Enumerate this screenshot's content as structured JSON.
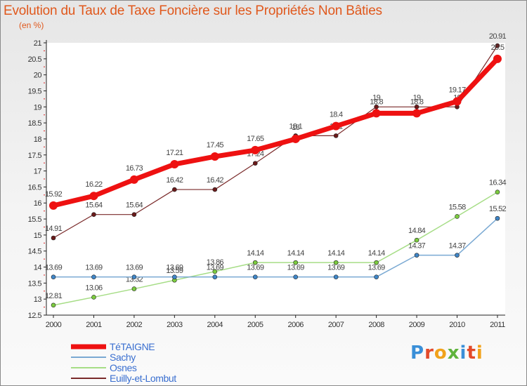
{
  "title": "Evolution du Taux de Taxe Foncière sur les Propriétés Non Bâties",
  "subtitle": "(en %)",
  "logo": {
    "text": "Proxiti",
    "colors": [
      "#3a8fd8",
      "#e34a2a",
      "#f1a21a",
      "#5fb33c",
      "#3a8fd8",
      "#e34a2a",
      "#f1a21a"
    ]
  },
  "chart_data": {
    "type": "line",
    "title": "Evolution du Taux de Taxe Foncière sur les Propriétés Non Bâties",
    "ylabel": "(en %)",
    "xlabel": "",
    "ylim": [
      12.5,
      21
    ],
    "yticks": [
      "12.5",
      "13",
      "13.5",
      "14",
      "14.5",
      "15",
      "15.5",
      "16",
      "16.5",
      "17",
      "17.5",
      "18",
      "18.5",
      "19",
      "19.5",
      "20",
      "20.5",
      "21"
    ],
    "x": [
      "2000",
      "2001",
      "2002",
      "2003",
      "2004",
      "2005",
      "2006",
      "2007",
      "2008",
      "2009",
      "2010",
      "2011"
    ],
    "grid": false,
    "legend_position": "bottom-left",
    "series": [
      {
        "name": "Euilly-et-Lombut",
        "color": "#7a2a2a",
        "marker": "#6b1a1a",
        "width": 1.2,
        "r": 3,
        "labelDy": -10,
        "values": [
          14.91,
          15.64,
          15.64,
          16.42,
          16.42,
          17.24,
          18.1,
          18.1,
          19,
          19,
          19,
          20.91
        ],
        "labels": [
          "14.91",
          "15.64",
          "15.64",
          "16.42",
          "16.42",
          "17.24",
          "18.1",
          "18.1",
          "19",
          "19",
          "19",
          "20.91"
        ]
      },
      {
        "name": "Osnes",
        "color": "#a6dd86",
        "marker": "#7ccc3f",
        "width": 1.5,
        "r": 3,
        "labelDy": -10,
        "values": [
          12.81,
          13.06,
          13.32,
          13.59,
          13.86,
          14.14,
          14.14,
          14.14,
          14.14,
          14.84,
          15.58,
          16.34
        ],
        "labels": [
          "12.81",
          "13.06",
          "13.32",
          "13.59",
          "13.86",
          "14.14",
          "14.14",
          "14.14",
          "14.14",
          "14.84",
          "15.58",
          "16.34"
        ]
      },
      {
        "name": "Sachy",
        "color": "#7aa9d3",
        "marker": "#3f86c8",
        "width": 1.5,
        "r": 3,
        "labelDy": -10,
        "values": [
          13.69,
          13.69,
          13.69,
          13.69,
          13.69,
          13.69,
          13.69,
          13.69,
          13.69,
          14.37,
          14.37,
          15.52
        ],
        "labels": [
          "13.69",
          "13.69",
          "13.69",
          "13.69",
          "13.69",
          "13.69",
          "13.69",
          "13.69",
          "13.69",
          "14.37",
          "14.37",
          "15.52"
        ]
      },
      {
        "name": "TéTAIGNE",
        "color": "#ee1111",
        "marker": "#ee1111",
        "width": 7,
        "r": 6,
        "labelDy": -13,
        "values": [
          15.92,
          16.22,
          16.73,
          17.21,
          17.45,
          17.65,
          18.0,
          18.4,
          18.8,
          18.8,
          19.17,
          20.5
        ],
        "labels": [
          "15.92",
          "16.22",
          "16.73",
          "17.21",
          "17.45",
          "17.65",
          "18",
          "18.4",
          "18.8",
          "18.8",
          "19.17",
          "20.5"
        ]
      }
    ],
    "legend": [
      {
        "name": "TéTAIGNE",
        "color": "#ee1111",
        "width": 7
      },
      {
        "name": "Sachy",
        "color": "#7aa9d3",
        "width": 2
      },
      {
        "name": "Osnes",
        "color": "#a6dd86",
        "width": 2
      },
      {
        "name": "Euilly-et-Lombut",
        "color": "#7a2a2a",
        "width": 2
      }
    ]
  }
}
